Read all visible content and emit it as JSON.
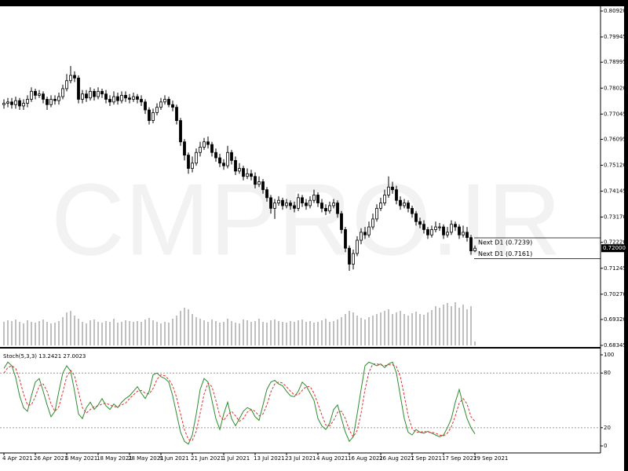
{
  "chart_data": {
    "type": "candlestick",
    "watermark": "CMPRO.IR",
    "categories": [
      "4 Apr 2021",
      null,
      null,
      null,
      null,
      null,
      null,
      null,
      "26 Apr 2021",
      null,
      null,
      null,
      null,
      null,
      null,
      null,
      "6 May 2021",
      null,
      null,
      null,
      null,
      null,
      null,
      null,
      "18 May 2021",
      null,
      null,
      null,
      null,
      null,
      null,
      null,
      "28 May 2021",
      null,
      null,
      null,
      null,
      null,
      null,
      null,
      "9 Jun 2021",
      null,
      null,
      null,
      null,
      null,
      null,
      null,
      "21 Jun 2021",
      null,
      null,
      null,
      null,
      null,
      null,
      null,
      "1 Jul 2021",
      null,
      null,
      null,
      null,
      null,
      null,
      null,
      "13 Jul 2021",
      null,
      null,
      null,
      null,
      null,
      null,
      null,
      "23 Jul 2021",
      null,
      null,
      null,
      null,
      null,
      null,
      null,
      "4 Aug 2021",
      null,
      null,
      null,
      null,
      null,
      null,
      null,
      "16 Aug 2021",
      null,
      null,
      null,
      null,
      null,
      null,
      null,
      "26 Aug 2021",
      null,
      null,
      null,
      null,
      null,
      null,
      null,
      "7 Sep 2021",
      null,
      null,
      null,
      null,
      null,
      null,
      null,
      "17 Sep 2021",
      null,
      null,
      null,
      null,
      null,
      null,
      null,
      "29 Sep 2021"
    ],
    "open": [
      0.774,
      0.7745,
      0.775,
      0.774,
      0.7755,
      0.7735,
      0.7745,
      0.776,
      0.779,
      0.7775,
      0.778,
      0.776,
      0.774,
      0.776,
      0.7755,
      0.777,
      0.78,
      0.783,
      0.785,
      0.784,
      0.776,
      0.778,
      0.7765,
      0.779,
      0.777,
      0.779,
      0.778,
      0.776,
      0.775,
      0.777,
      0.7755,
      0.7775,
      0.7765,
      0.776,
      0.777,
      0.776,
      0.775,
      0.772,
      0.768,
      0.771,
      0.773,
      0.775,
      0.776,
      0.774,
      0.773,
      0.768,
      0.76,
      0.755,
      0.75,
      0.752,
      0.756,
      0.758,
      0.76,
      0.759,
      0.756,
      0.754,
      0.752,
      0.751,
      0.756,
      0.753,
      0.749,
      0.75,
      0.747,
      0.748,
      0.747,
      0.744,
      0.745,
      0.742,
      0.739,
      0.735,
      0.737,
      0.738,
      0.736,
      0.737,
      0.736,
      0.735,
      0.739,
      0.737,
      0.736,
      0.738,
      0.74,
      0.737,
      0.735,
      0.734,
      0.736,
      0.737,
      0.733,
      0.727,
      0.72,
      0.714,
      0.718,
      0.723,
      0.726,
      0.725,
      0.728,
      0.731,
      0.735,
      0.737,
      0.74,
      0.743,
      0.742,
      0.738,
      0.736,
      0.737,
      0.735,
      0.733,
      0.73,
      0.729,
      0.727,
      0.725,
      0.727,
      0.728,
      0.728,
      0.725,
      0.726,
      0.729,
      0.728,
      0.725,
      0.726,
      0.724,
      0.719
    ],
    "high": [
      0.776,
      0.7765,
      0.7765,
      0.777,
      0.7765,
      0.776,
      0.7775,
      0.7805,
      0.78,
      0.7795,
      0.779,
      0.777,
      0.7775,
      0.7775,
      0.7785,
      0.7815,
      0.7855,
      0.7885,
      0.7865,
      0.785,
      0.7795,
      0.7795,
      0.7805,
      0.78,
      0.7805,
      0.78,
      0.7795,
      0.7775,
      0.779,
      0.7785,
      0.779,
      0.779,
      0.778,
      0.7785,
      0.778,
      0.7775,
      0.776,
      0.773,
      0.7725,
      0.7745,
      0.7765,
      0.7775,
      0.777,
      0.7755,
      0.774,
      0.769,
      0.761,
      0.756,
      0.7545,
      0.7575,
      0.76,
      0.7615,
      0.762,
      0.76,
      0.7575,
      0.7555,
      0.7535,
      0.7585,
      0.757,
      0.7545,
      0.752,
      0.751,
      0.75,
      0.7495,
      0.7485,
      0.747,
      0.746,
      0.743,
      0.74,
      0.7385,
      0.7395,
      0.739,
      0.7385,
      0.738,
      0.7375,
      0.7405,
      0.74,
      0.7385,
      0.7395,
      0.742,
      0.741,
      0.7385,
      0.7365,
      0.7375,
      0.7385,
      0.738,
      0.734,
      0.728,
      0.721,
      0.7195,
      0.7245,
      0.7275,
      0.728,
      0.73,
      0.733,
      0.7365,
      0.739,
      0.742,
      0.747,
      0.745,
      0.7435,
      0.7395,
      0.7385,
      0.738,
      0.736,
      0.734,
      0.7315,
      0.7305,
      0.728,
      0.7285,
      0.73,
      0.7295,
      0.729,
      0.728,
      0.7305,
      0.73,
      0.729,
      0.7285,
      0.728,
      0.725,
      0.721
    ],
    "low": [
      0.7725,
      0.773,
      0.7725,
      0.7725,
      0.772,
      0.772,
      0.773,
      0.775,
      0.776,
      0.7765,
      0.7745,
      0.772,
      0.773,
      0.774,
      0.774,
      0.776,
      0.779,
      0.782,
      0.7825,
      0.7745,
      0.7745,
      0.775,
      0.7755,
      0.7755,
      0.776,
      0.7765,
      0.7745,
      0.7735,
      0.774,
      0.774,
      0.7745,
      0.775,
      0.7745,
      0.775,
      0.7745,
      0.7735,
      0.7705,
      0.7665,
      0.767,
      0.77,
      0.772,
      0.774,
      0.773,
      0.7715,
      0.7665,
      0.7585,
      0.753,
      0.748,
      0.7485,
      0.751,
      0.7545,
      0.757,
      0.7575,
      0.7545,
      0.7525,
      0.7505,
      0.7495,
      0.75,
      0.7515,
      0.7475,
      0.748,
      0.7455,
      0.746,
      0.7455,
      0.7425,
      0.743,
      0.7405,
      0.7375,
      0.733,
      0.731,
      0.736,
      0.7345,
      0.735,
      0.7345,
      0.7335,
      0.734,
      0.7355,
      0.7345,
      0.735,
      0.737,
      0.7355,
      0.7335,
      0.7325,
      0.733,
      0.735,
      0.7315,
      0.7255,
      0.7185,
      0.7115,
      0.712,
      0.717,
      0.7215,
      0.7235,
      0.724,
      0.727,
      0.73,
      0.734,
      0.736,
      0.739,
      0.7405,
      0.7365,
      0.7345,
      0.735,
      0.7335,
      0.7315,
      0.7285,
      0.7275,
      0.7255,
      0.7235,
      0.724,
      0.726,
      0.7265,
      0.7235,
      0.724,
      0.725,
      0.7265,
      0.7235,
      0.724,
      0.7225,
      0.7175,
      0.7185
    ],
    "close": [
      0.7745,
      0.775,
      0.774,
      0.7755,
      0.7735,
      0.7745,
      0.776,
      0.779,
      0.7775,
      0.778,
      0.776,
      0.774,
      0.776,
      0.7755,
      0.777,
      0.78,
      0.783,
      0.785,
      0.784,
      0.776,
      0.778,
      0.7765,
      0.779,
      0.777,
      0.779,
      0.778,
      0.776,
      0.775,
      0.777,
      0.7755,
      0.7775,
      0.7765,
      0.776,
      0.777,
      0.776,
      0.775,
      0.772,
      0.768,
      0.771,
      0.773,
      0.775,
      0.776,
      0.774,
      0.773,
      0.768,
      0.76,
      0.755,
      0.75,
      0.752,
      0.756,
      0.758,
      0.76,
      0.759,
      0.756,
      0.754,
      0.752,
      0.751,
      0.756,
      0.753,
      0.749,
      0.75,
      0.747,
      0.748,
      0.747,
      0.744,
      0.745,
      0.742,
      0.739,
      0.735,
      0.737,
      0.738,
      0.736,
      0.737,
      0.736,
      0.735,
      0.739,
      0.737,
      0.736,
      0.738,
      0.74,
      0.737,
      0.735,
      0.734,
      0.736,
      0.737,
      0.733,
      0.727,
      0.72,
      0.714,
      0.718,
      0.723,
      0.726,
      0.725,
      0.728,
      0.731,
      0.735,
      0.737,
      0.74,
      0.743,
      0.742,
      0.738,
      0.736,
      0.737,
      0.735,
      0.733,
      0.73,
      0.729,
      0.727,
      0.725,
      0.727,
      0.728,
      0.728,
      0.725,
      0.726,
      0.729,
      0.728,
      0.725,
      0.726,
      0.724,
      0.719,
      0.72
    ],
    "ylim": [
      0.68256,
      0.81039
    ],
    "yticks": [
      {
        "value": 0.8092,
        "label": "0.80920"
      },
      0.79945,
      0.78995,
      {
        "value": 0.7802,
        "label": "0.78020"
      },
      0.77045,
      0.76095,
      {
        "value": 0.7512,
        "label": "0.75120"
      },
      0.74145,
      {
        "value": 0.7317,
        "label": "0.73170"
      },
      {
        "value": 0.7222,
        "label": "0.72220"
      },
      0.71245,
      {
        "value": 0.7027,
        "label": "0.70270"
      },
      {
        "value": 0.6932,
        "label": "0.69320"
      },
      0.68345
    ],
    "current_price": {
      "value": 0.72,
      "label": "0.72000"
    },
    "levels": [
      {
        "value": 0.7239,
        "label": "Next D1 (0.7239)"
      },
      {
        "value": 0.7161,
        "label": "Next D1 (0.7161)"
      }
    ],
    "volume": {
      "color": "#808080",
      "ylim": [
        0,
        60
      ],
      "values": [
        30,
        32,
        31,
        33,
        30,
        28,
        32,
        30,
        29,
        31,
        33,
        30,
        28,
        29,
        31,
        36,
        42,
        44,
        38,
        34,
        30,
        28,
        32,
        33,
        30,
        29,
        31,
        30,
        34,
        29,
        30,
        32,
        31,
        30,
        31,
        30,
        33,
        35,
        32,
        30,
        28,
        30,
        29,
        34,
        38,
        44,
        48,
        46,
        40,
        36,
        34,
        32,
        30,
        33,
        31,
        29,
        30,
        34,
        31,
        29,
        28,
        33,
        32,
        30,
        31,
        34,
        30,
        29,
        32,
        33,
        31,
        30,
        29,
        31,
        30,
        32,
        33,
        30,
        31,
        29,
        30,
        32,
        34,
        30,
        31,
        33,
        36,
        40,
        44,
        42,
        38,
        35,
        33,
        36,
        38,
        40,
        42,
        44,
        46,
        40,
        42,
        44,
        40,
        38,
        41,
        43,
        40,
        39,
        42,
        45,
        50,
        48,
        52,
        54,
        50,
        55,
        48,
        52,
        46,
        50,
        5
      ]
    },
    "stochastic": {
      "title": "Stoch(5,3,3) 13.2421 27.0023",
      "ylim": [
        -6,
        104.3
      ],
      "yticks": [
        100,
        80,
        20,
        0
      ],
      "dotted_levels": [
        80,
        20
      ],
      "series": [
        {
          "color": "#2e8b2e",
          "values": [
            85,
            92,
            88,
            75,
            55,
            42,
            38,
            55,
            70,
            74,
            60,
            45,
            32,
            38,
            60,
            80,
            88,
            82,
            60,
            35,
            30,
            42,
            48,
            40,
            45,
            52,
            44,
            40,
            46,
            42,
            48,
            52,
            55,
            60,
            65,
            58,
            52,
            60,
            78,
            80,
            76,
            74,
            70,
            55,
            35,
            15,
            5,
            2,
            12,
            35,
            62,
            74,
            70,
            50,
            30,
            18,
            35,
            48,
            30,
            22,
            30,
            38,
            42,
            40,
            32,
            28,
            45,
            62,
            70,
            72,
            68,
            66,
            60,
            55,
            54,
            60,
            70,
            66,
            58,
            50,
            30,
            22,
            18,
            25,
            40,
            45,
            30,
            15,
            5,
            10,
            35,
            62,
            88,
            92,
            90,
            88,
            90,
            86,
            90,
            92,
            80,
            55,
            30,
            15,
            12,
            18,
            15,
            14,
            16,
            14,
            12,
            10,
            12,
            20,
            30,
            48,
            62,
            45,
            30,
            20,
            13.2421
          ]
        },
        {
          "color": "#e03030",
          "dashed": true,
          "values": [
            80,
            86,
            88,
            85,
            73,
            57,
            45,
            45,
            54,
            66,
            68,
            60,
            46,
            38,
            43,
            59,
            76,
            83,
            77,
            59,
            42,
            36,
            40,
            43,
            44,
            46,
            47,
            45,
            43,
            43,
            45,
            47,
            52,
            56,
            60,
            61,
            58,
            57,
            63,
            73,
            78,
            77,
            73,
            66,
            53,
            35,
            18,
            7,
            6,
            16,
            36,
            57,
            69,
            65,
            50,
            33,
            28,
            34,
            38,
            33,
            27,
            30,
            37,
            40,
            38,
            33,
            35,
            45,
            59,
            68,
            70,
            69,
            65,
            60,
            56,
            56,
            61,
            65,
            65,
            58,
            46,
            34,
            23,
            22,
            28,
            37,
            38,
            30,
            17,
            10,
            17,
            36,
            62,
            81,
            90,
            90,
            89,
            88,
            89,
            89,
            87,
            76,
            55,
            33,
            19,
            15,
            15,
            16,
            15,
            15,
            14,
            12,
            11,
            14,
            21,
            33,
            47,
            52,
            46,
            32,
            27.0023
          ]
        }
      ]
    }
  }
}
